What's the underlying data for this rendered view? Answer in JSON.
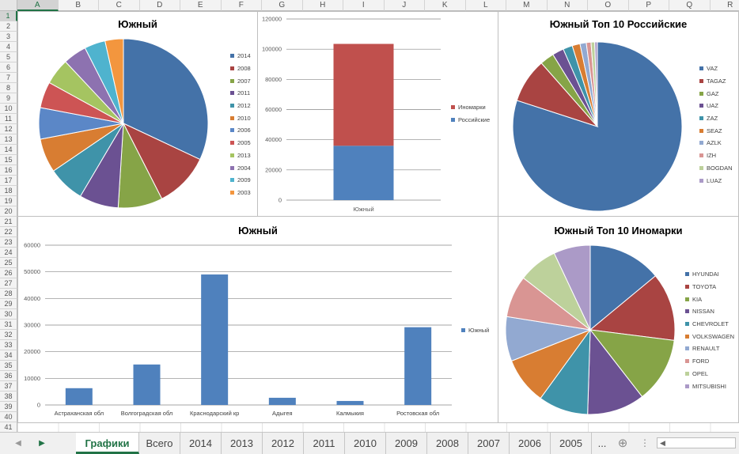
{
  "sheet": {
    "columns": [
      "A",
      "B",
      "C",
      "D",
      "E",
      "F",
      "G",
      "H",
      "I",
      "J",
      "K",
      "L",
      "M",
      "N",
      "O",
      "P",
      "Q",
      "R"
    ],
    "selected_column": "A",
    "selected_row": 1,
    "rows": [
      "1",
      "2",
      "3",
      "4",
      "5",
      "6",
      "7",
      "8",
      "9",
      "10",
      "11",
      "12",
      "13",
      "14",
      "15",
      "16",
      "17",
      "18",
      "19",
      "20",
      "21",
      "22",
      "23",
      "24",
      "25",
      "26",
      "27",
      "28",
      "29",
      "30",
      "31",
      "32",
      "33",
      "34",
      "35",
      "36",
      "37",
      "38",
      "39",
      "40",
      "41"
    ]
  },
  "charts": {
    "pie_years": {
      "title": "Южный",
      "legend": [
        "2014",
        "2008",
        "2007",
        "2011",
        "2012",
        "2010",
        "2006",
        "2005",
        "2013",
        "2004",
        "2009",
        "2003"
      ]
    },
    "stacked": {
      "legend": [
        "Иномарки",
        "Российские"
      ]
    },
    "pie_russian": {
      "title": "Южный Топ 10 Российские",
      "legend": [
        "VAZ",
        "TAGAZ",
        "GAZ",
        "UAZ",
        "ZAZ",
        "SEAZ",
        "AZLK",
        "IZH",
        "BOGDAN",
        "LUAZ"
      ]
    },
    "bars_regions": {
      "title": "Южный",
      "legend": [
        "Южный"
      ]
    },
    "pie_foreign": {
      "title": "Южный Топ 10 Иномарки",
      "legend": [
        "HYUNDAI",
        "TOYOTA",
        "KIA",
        "NISSAN",
        "CHEVROLET",
        "VOLKSWAGEN",
        "RENAULT",
        "FORD",
        "OPEL",
        "MITSUBISHI"
      ]
    }
  },
  "chart_data": [
    {
      "type": "pie",
      "title": "Южный",
      "categories": [
        "2014",
        "2008",
        "2007",
        "2011",
        "2012",
        "2010",
        "2006",
        "2005",
        "2013",
        "2004",
        "2009",
        "2003"
      ],
      "values": [
        32,
        10.5,
        8.5,
        7.5,
        7,
        6.5,
        6,
        5,
        5,
        4.5,
        4,
        3.5
      ],
      "colors": [
        "#4472a8",
        "#a94442",
        "#86a447",
        "#6b5192",
        "#3f93a9",
        "#d87d32",
        "#5b87c7",
        "#cd5454",
        "#a5c461",
        "#8d72b0",
        "#4fb3ce",
        "#f3963e"
      ],
      "legend_position": "right"
    },
    {
      "type": "bar",
      "stacked": true,
      "categories": [
        "Южный"
      ],
      "series": [
        {
          "name": "Российские",
          "values": [
            36000
          ],
          "color": "#4f81bd"
        },
        {
          "name": "Иномарки",
          "values": [
            67500
          ],
          "color": "#c0504d"
        }
      ],
      "ylim": [
        0,
        120000
      ],
      "yticks": [
        0,
        20000,
        40000,
        60000,
        80000,
        100000,
        120000
      ],
      "grid": true,
      "legend_position": "right"
    },
    {
      "type": "pie",
      "title": "Южный Топ 10 Российские",
      "categories": [
        "VAZ",
        "TAGAZ",
        "GAZ",
        "UAZ",
        "ZAZ",
        "SEAZ",
        "AZLK",
        "IZH",
        "BOGDAN",
        "LUAZ"
      ],
      "values": [
        80,
        8.5,
        2.7,
        2.2,
        1.8,
        1.5,
        1.2,
        0.9,
        0.7,
        0.5
      ],
      "colors": [
        "#4472a8",
        "#a94442",
        "#86a447",
        "#6b5192",
        "#3f93a9",
        "#d87d32",
        "#92a9d1",
        "#d99593",
        "#bdd19b",
        "#ab9ac7"
      ],
      "legend_position": "right"
    },
    {
      "type": "bar",
      "title": "Южный",
      "categories": [
        "Астраханская обл",
        "Волгоградская обл",
        "Краснодарский кр",
        "Адыгея",
        "Калмыкия",
        "Ростовская обл"
      ],
      "series": [
        {
          "name": "Южный",
          "values": [
            6300,
            15200,
            49000,
            2700,
            1500,
            29200
          ],
          "color": "#4f81bd"
        }
      ],
      "ylim": [
        0,
        60000
      ],
      "yticks": [
        0,
        10000,
        20000,
        30000,
        40000,
        50000,
        60000
      ],
      "grid": true,
      "legend_position": "right"
    },
    {
      "type": "pie",
      "title": "Южный Топ 10 Иномарки",
      "categories": [
        "HYUNDAI",
        "TOYOTA",
        "KIA",
        "NISSAN",
        "CHEVROLET",
        "VOLKSWAGEN",
        "RENAULT",
        "FORD",
        "OPEL",
        "MITSUBISHI"
      ],
      "values": [
        14,
        13,
        12.5,
        11,
        9.5,
        9,
        8.5,
        8,
        7.5,
        7
      ],
      "colors": [
        "#4472a8",
        "#a94442",
        "#86a447",
        "#6b5192",
        "#3f93a9",
        "#d87d32",
        "#92a9d1",
        "#d99593",
        "#bdd19b",
        "#ab9ac7"
      ],
      "legend_position": "right"
    }
  ],
  "tabs": {
    "items": [
      "Графики",
      "Всего",
      "2014",
      "2013",
      "2012",
      "2011",
      "2010",
      "2009",
      "2008",
      "2007",
      "2006",
      "2005"
    ],
    "active": "Графики",
    "more": "...",
    "add": "⊕",
    "prev": "◀",
    "next": "▶",
    "options": "⋮",
    "scroll_left": "◀"
  }
}
